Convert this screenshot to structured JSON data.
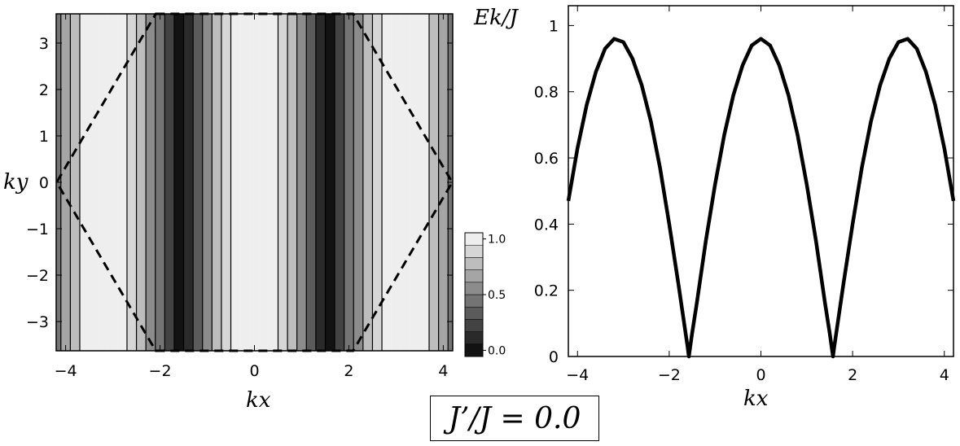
{
  "annotation": "J’/J = 0.0",
  "chart_data": [
    {
      "type": "heatmap",
      "xlabel": "kx",
      "ylabel": "ky",
      "xlim": [
        -4.2,
        4.2
      ],
      "ylim": [
        -3.63,
        3.63
      ],
      "x_ticks": [
        "−4",
        "−2",
        "0",
        "2",
        "4"
      ],
      "y_ticks": [
        "3",
        "2",
        "1",
        "0",
        "−1",
        "−2",
        "−3"
      ],
      "x_tick_values": [
        -4,
        -2,
        0,
        2,
        4
      ],
      "y_tick_values": [
        3,
        2,
        1,
        0,
        -1,
        -2,
        -3
      ],
      "function": "|cos(kx)|",
      "x_samples": [
        -4.2,
        -4.0,
        -3.8,
        -3.6,
        -3.4,
        -3.2,
        -3.0,
        -2.8,
        -2.6,
        -2.4,
        -2.2,
        -2.0,
        -1.8,
        -1.6,
        -1.4,
        -1.2,
        -1.0,
        -0.8,
        -0.6,
        -0.4,
        -0.2,
        0.0,
        0.2,
        0.4,
        0.6,
        0.8,
        1.0,
        1.2,
        1.4,
        1.6,
        1.8,
        2.0,
        2.2,
        2.4,
        2.6,
        2.8,
        3.0,
        3.2,
        3.4,
        3.6,
        3.8,
        4.0,
        4.2
      ],
      "values": [
        0.49,
        0.65,
        0.79,
        0.9,
        0.97,
        1.0,
        0.99,
        0.94,
        0.86,
        0.74,
        0.59,
        0.42,
        0.23,
        0.03,
        0.17,
        0.36,
        0.54,
        0.7,
        0.83,
        0.92,
        0.98,
        1.0,
        0.98,
        0.92,
        0.83,
        0.7,
        0.54,
        0.36,
        0.17,
        0.03,
        0.23,
        0.42,
        0.59,
        0.74,
        0.86,
        0.94,
        0.99,
        1.0,
        0.97,
        0.9,
        0.79,
        0.65,
        0.49
      ],
      "colorbar": {
        "ticks": [
          "1.0",
          "0.5",
          "0.0"
        ],
        "tick_values": [
          1.0,
          0.5,
          0.0
        ],
        "levels": 10,
        "range": [
          0,
          1
        ]
      },
      "overlay": {
        "style": "dashed",
        "vertices": [
          [
            -2.09,
            3.63
          ],
          [
            2.09,
            3.63
          ],
          [
            4.19,
            0
          ],
          [
            2.09,
            -3.63
          ],
          [
            -2.09,
            -3.63
          ],
          [
            -4.19,
            0
          ]
        ]
      }
    },
    {
      "type": "line",
      "xlabel": "kx",
      "ylabel": "Ek/J",
      "xlim": [
        -4.2,
        4.2
      ],
      "ylim": [
        0,
        1.06
      ],
      "x_ticks": [
        "−4",
        "−2",
        "0",
        "2",
        "4"
      ],
      "y_ticks": [
        "0",
        "0.2",
        "0.4",
        "0.6",
        "0.8",
        "1"
      ],
      "x_tick_values": [
        -4,
        -2,
        0,
        2,
        4
      ],
      "y_tick_values": [
        0,
        0.2,
        0.4,
        0.6,
        0.8,
        1
      ],
      "series": [
        {
          "x": [
            -4.2,
            -4.0,
            -3.8,
            -3.6,
            -3.4,
            -3.2,
            -3.0,
            -2.8,
            -2.6,
            -2.4,
            -2.2,
            -2.0,
            -1.8,
            -1.6,
            -1.571,
            -1.5,
            -1.4,
            -1.2,
            -1.0,
            -0.8,
            -0.6,
            -0.4,
            -0.2,
            0.0,
            0.2,
            0.4,
            0.6,
            0.8,
            1.0,
            1.2,
            1.4,
            1.5,
            1.571,
            1.6,
            1.8,
            2.0,
            2.2,
            2.4,
            2.6,
            2.8,
            3.0,
            3.2,
            3.4,
            3.6,
            3.8,
            4.0,
            4.2
          ],
          "y": [
            0.47,
            0.63,
            0.76,
            0.86,
            0.93,
            0.96,
            0.95,
            0.9,
            0.82,
            0.71,
            0.57,
            0.4,
            0.22,
            0.03,
            0.0,
            0.07,
            0.16,
            0.35,
            0.52,
            0.67,
            0.79,
            0.88,
            0.94,
            0.96,
            0.94,
            0.88,
            0.79,
            0.67,
            0.52,
            0.35,
            0.16,
            0.07,
            0.0,
            0.03,
            0.22,
            0.4,
            0.57,
            0.71,
            0.82,
            0.9,
            0.95,
            0.96,
            0.93,
            0.86,
            0.76,
            0.63,
            0.47
          ]
        }
      ]
    }
  ]
}
